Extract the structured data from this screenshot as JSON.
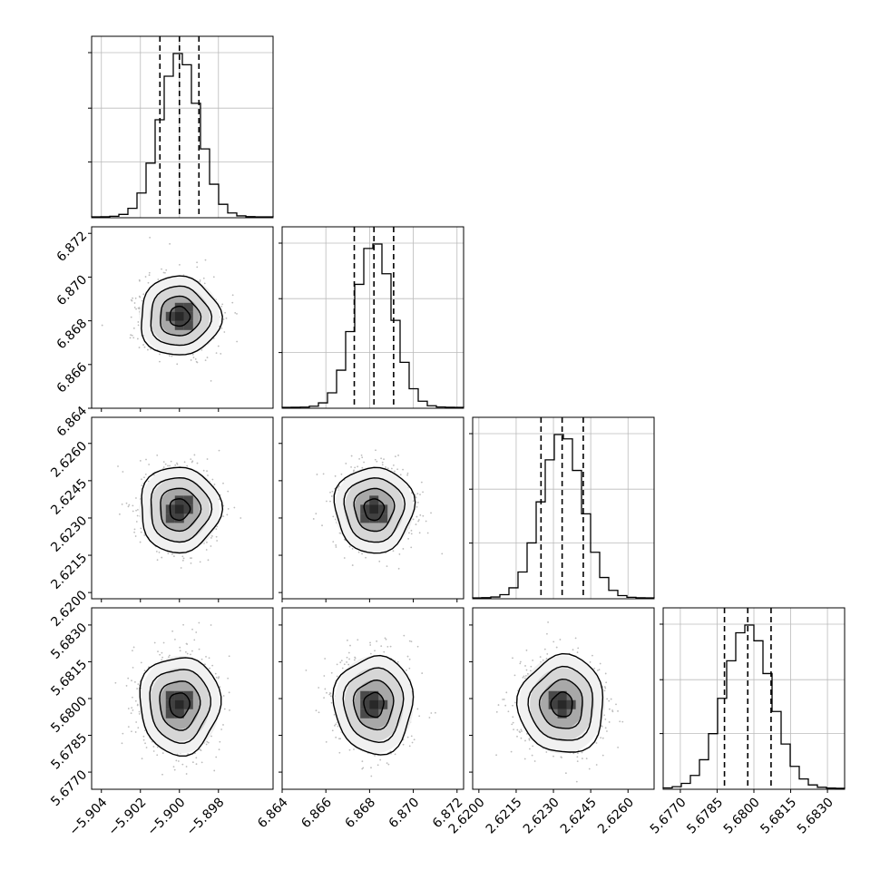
{
  "chart_data": {
    "type": "corner",
    "parameters": [
      {
        "index": 0,
        "mean": -5.9,
        "sd": 0.00098,
        "q16": -5.901,
        "q50": -5.9,
        "q84": -5.899,
        "range": [
          -5.9045,
          -5.8952
        ],
        "ticks": [
          -5.904,
          -5.902,
          -5.9,
          -5.898
        ],
        "tick_labels": [
          "−5.904",
          "−5.902",
          "−5.900",
          "−5.898"
        ]
      },
      {
        "index": 1,
        "mean": 6.8682,
        "sd": 0.00086,
        "q16": 6.8673,
        "q50": 6.8682,
        "q84": 6.8691,
        "range": [
          6.864,
          6.8723
        ],
        "ticks": [
          6.864,
          6.866,
          6.868,
          6.87,
          6.872
        ],
        "tick_labels": [
          "6.864",
          "6.866",
          "6.868",
          "6.870",
          "6.872"
        ]
      },
      {
        "index": 2,
        "mean": 2.62335,
        "sd": 0.00082,
        "q16": 2.6225,
        "q50": 2.62335,
        "q84": 2.6242,
        "range": [
          2.61975,
          2.62705
        ],
        "ticks": [
          2.62,
          2.6215,
          2.623,
          2.6245,
          2.626
        ],
        "tick_labels": [
          "2.6200",
          "2.6215",
          "2.6230",
          "2.6245",
          "2.6260"
        ]
      },
      {
        "index": 3,
        "mean": 5.67975,
        "sd": 0.00095,
        "q16": 5.6788,
        "q50": 5.67975,
        "q84": 5.6807,
        "range": [
          5.6763,
          5.6837
        ],
        "ticks": [
          5.677,
          5.6785,
          5.68,
          5.6815,
          5.683
        ],
        "tick_labels": [
          "5.6770",
          "5.6785",
          "5.6800",
          "5.6815",
          "5.6830"
        ]
      }
    ],
    "histogram_bins": 20,
    "quantiles": [
      0.16,
      0.5,
      0.84
    ],
    "contour_levels_sigma": [
      0.5,
      1.0,
      1.5,
      2.0
    ],
    "grid": true
  }
}
